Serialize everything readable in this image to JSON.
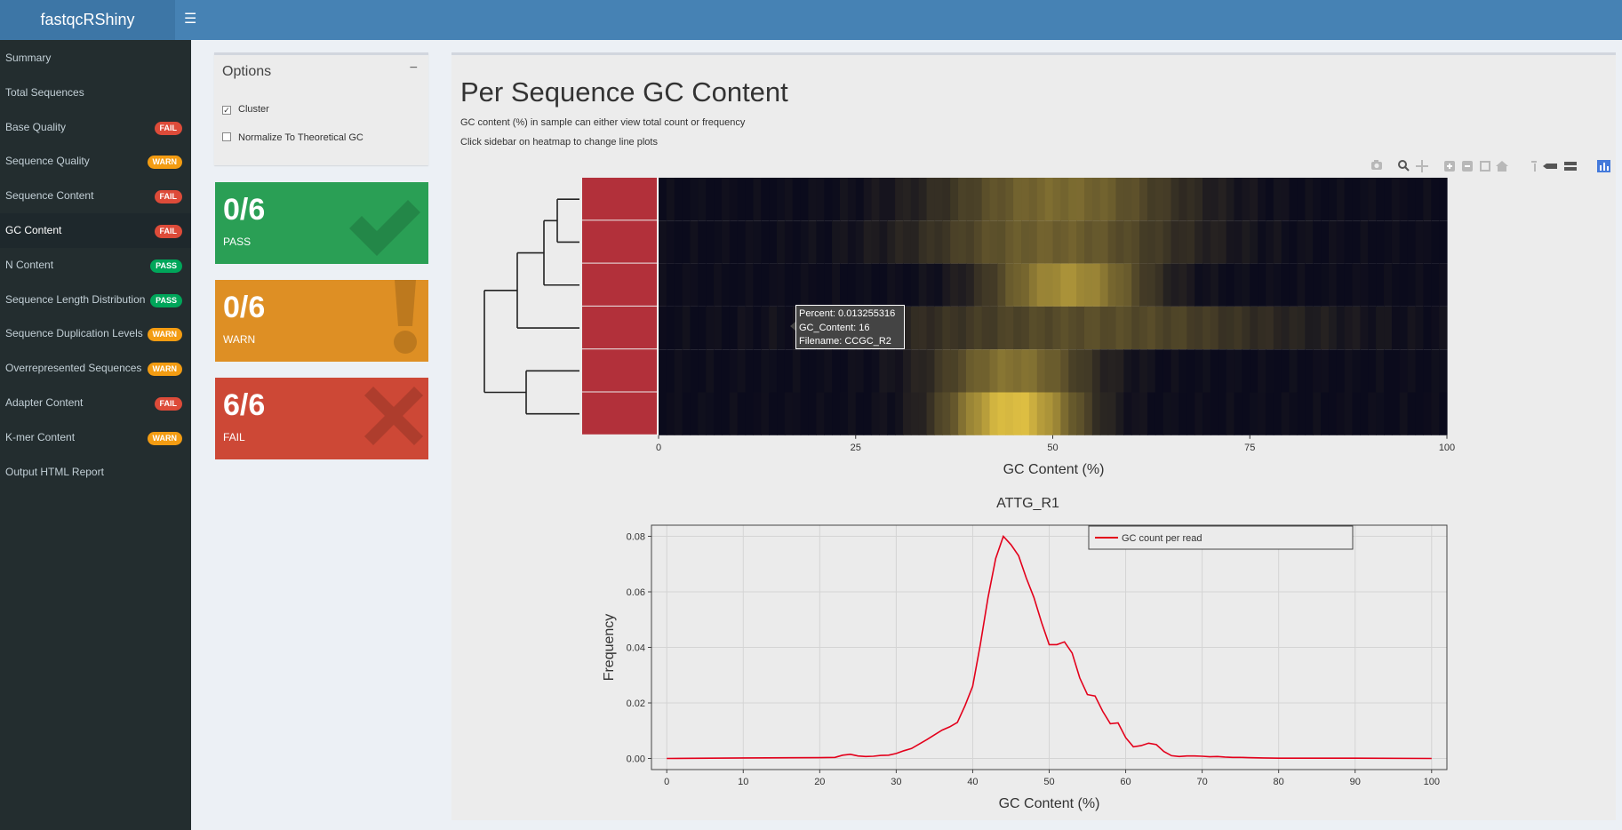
{
  "app": {
    "title": "fastqcRShiny",
    "menu_icon": "hamburger-icon"
  },
  "sidebar": {
    "items": [
      {
        "label": "Summary",
        "badge": ""
      },
      {
        "label": "Total Sequences",
        "badge": ""
      },
      {
        "label": "Base Quality",
        "badge": "FAIL"
      },
      {
        "label": "Sequence Quality",
        "badge": "WARN"
      },
      {
        "label": "Sequence Content",
        "badge": "FAIL"
      },
      {
        "label": "GC Content",
        "badge": "FAIL",
        "active": true
      },
      {
        "label": "N Content",
        "badge": "PASS"
      },
      {
        "label": "Sequence Length Distribution",
        "badge": "PASS"
      },
      {
        "label": "Sequence Duplication Levels",
        "badge": "WARN"
      },
      {
        "label": "Overrepresented Sequences",
        "badge": "WARN"
      },
      {
        "label": "Adapter Content",
        "badge": "FAIL"
      },
      {
        "label": "K-mer Content",
        "badge": "WARN"
      },
      {
        "label": "Output HTML Report",
        "badge": ""
      }
    ],
    "badge_colors": {
      "FAIL": "#dd4b39",
      "WARN": "#f39c12",
      "PASS": "#00a65a"
    }
  },
  "options": {
    "title": "Options",
    "collapse_symbol": "−",
    "cluster_label": "Cluster",
    "cluster_checked": true,
    "normalize_label": "Normalize To Theoretical GC",
    "normalize_checked": false
  },
  "valueboxes": {
    "pass": {
      "value": "0/6",
      "label": "PASS",
      "color": "#2a9f55",
      "icon": "check-icon"
    },
    "warn": {
      "value": "0/6",
      "label": "WARN",
      "color": "#de8f24",
      "icon": "exclamation-icon"
    },
    "fail": {
      "value": "6/6",
      "label": "FAIL",
      "color": "#cd4836",
      "icon": "x-icon"
    }
  },
  "main": {
    "title": "Per Sequence GC Content",
    "desc1": "GC content (%) in sample can either view total count or frequency",
    "desc2": "Click sidebar on heatmap to change line plots"
  },
  "modebar": [
    "camera-icon",
    "zoom-icon",
    "pan-icon",
    "zoom-in-icon",
    "zoom-out-icon",
    "autoscale-icon",
    "reset-axes-icon",
    "spike-lines-icon",
    "hover-closest-icon",
    "hover-compare-icon",
    "plotly-logo-icon"
  ],
  "tooltip": {
    "line1": "Percent: 0.013255316",
    "line2": "GC_Content:  16",
    "line3": "Filename: CCGC_R2"
  },
  "chart_data": [
    {
      "type": "heatmap",
      "xlabel": "GC Content (%)",
      "xlim": [
        0,
        100
      ],
      "xticks": [
        0,
        25,
        50,
        75,
        100
      ],
      "rows": 6,
      "sidebar_color": "#b2303a",
      "colorscale": [
        "#0b0b1c",
        "#e8c744"
      ],
      "row_peaks": [
        {
          "center": 51,
          "width": 11,
          "intensity": 0.5
        },
        {
          "center": 50,
          "width": 12,
          "intensity": 0.45
        },
        {
          "center": 52,
          "width": 7,
          "intensity": 0.7
        },
        {
          "center": 55,
          "width": 18,
          "intensity": 0.35
        },
        {
          "center": 45,
          "width": 7,
          "intensity": 0.55
        },
        {
          "center": 45,
          "width": 6,
          "intensity": 0.95
        }
      ]
    },
    {
      "type": "line",
      "title": "ATTG_R1",
      "xlabel": "GC Content (%)",
      "ylabel": "Frequency",
      "xlim": [
        -2,
        102
      ],
      "ylim": [
        -0.004,
        0.084
      ],
      "xticks": [
        0,
        10,
        20,
        30,
        40,
        50,
        60,
        70,
        80,
        90,
        100
      ],
      "yticks": [
        0.0,
        0.02,
        0.04,
        0.06,
        0.08
      ],
      "ytick_labels": [
        "0.00",
        "0.02",
        "0.04",
        "0.06",
        "0.08"
      ],
      "legend": "GC count per read",
      "line_color": "#e3001b",
      "series": [
        {
          "name": "GC count per read",
          "x": [
            0,
            10,
            20,
            22,
            23,
            24,
            25,
            26,
            27,
            28,
            29,
            30,
            31,
            32,
            33,
            34,
            35,
            36,
            37,
            38,
            39,
            40,
            41,
            42,
            43,
            44,
            45,
            46,
            47,
            48,
            49,
            50,
            51,
            52,
            53,
            54,
            55,
            56,
            57,
            58,
            59,
            60,
            61,
            62,
            63,
            64,
            65,
            66,
            67,
            68,
            69,
            70,
            71,
            72,
            73,
            74,
            75,
            76,
            78,
            80,
            90,
            100
          ],
          "y": [
            0.0,
            0.0002,
            0.0003,
            0.0004,
            0.0012,
            0.0015,
            0.0009,
            0.0007,
            0.0008,
            0.0011,
            0.0012,
            0.0018,
            0.0028,
            0.0036,
            0.0052,
            0.0068,
            0.0085,
            0.0102,
            0.0114,
            0.013,
            0.019,
            0.026,
            0.041,
            0.058,
            0.072,
            0.08,
            0.077,
            0.073,
            0.065,
            0.058,
            0.049,
            0.041,
            0.041,
            0.042,
            0.038,
            0.029,
            0.023,
            0.0225,
            0.017,
            0.0125,
            0.0128,
            0.0075,
            0.0042,
            0.0046,
            0.0055,
            0.005,
            0.0025,
            0.001,
            0.0007,
            0.0009,
            0.0009,
            0.0008,
            0.0006,
            0.0007,
            0.0005,
            0.0004,
            0.0004,
            0.0003,
            0.0002,
            0.0001,
            0.0001,
            0.0
          ]
        }
      ]
    }
  ]
}
